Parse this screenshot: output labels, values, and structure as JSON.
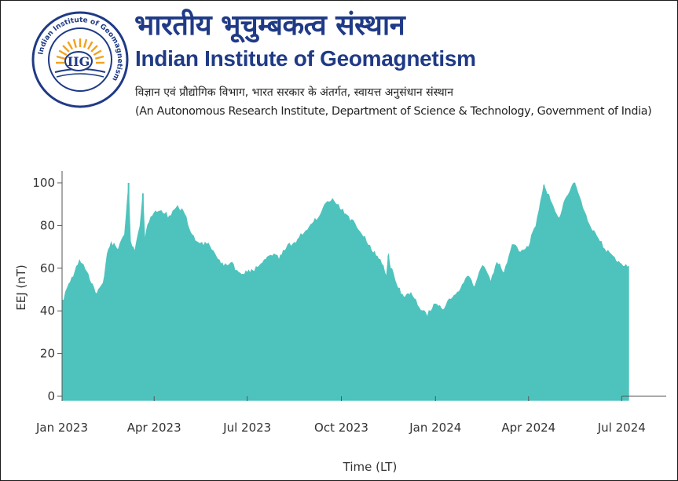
{
  "header": {
    "title_hindi": "भारतीय भूचुम्बकत्व संस्थान",
    "title_english": "Indian Institute of Geomagnetism",
    "subtitle_hindi": "विज्ञान एवं प्रौद्योगिक विभाग, भारत सरकार के अंतर्गत, स्वायत्त अनुसंधान संस्थान",
    "subtitle_english": "(An Autonomous Research Institute, Department of Science  & Technology, Government of India)",
    "logo": {
      "abbr": "IIG",
      "ring_text": "Indian Institute of Geomagnetism",
      "ring_text_hindi": "भारतीय भूचुम्बकत्व संस्थान",
      "ring_color": "#1f3a86",
      "sun_color": "#f2a11e"
    }
  },
  "chart_data": {
    "type": "area",
    "xlabel": "Time (LT)",
    "ylabel": "EEJ (nT)",
    "ylim": [
      -2,
      105
    ],
    "yticks": [
      0,
      20,
      40,
      60,
      80,
      100
    ],
    "x_tick_labels": [
      "Jan 2023",
      "Apr 2023",
      "Jul 2023",
      "Oct 2023",
      "Jan 2024",
      "Apr 2024",
      "Jul 2024"
    ],
    "x_tick_dates": [
      "2023-01-01",
      "2023-04-01",
      "2023-07-01",
      "2023-10-01",
      "2024-01-01",
      "2024-04-01",
      "2024-07-01"
    ],
    "xlim": [
      "2023-01-01",
      "2024-07-10"
    ],
    "fill_color": "#4ec3bd",
    "baseline_min": -2,
    "series": [
      {
        "date": [
          "2023-01-01",
          "2023-01-06",
          "2023-01-12",
          "2023-01-18",
          "2023-01-22",
          "2023-01-28",
          "2023-02-04",
          "2023-02-10",
          "2023-02-14",
          "2023-02-18",
          "2023-02-25",
          "2023-03-03",
          "2023-03-07",
          "2023-03-09",
          "2023-03-13",
          "2023-03-18",
          "2023-03-21",
          "2023-03-23",
          "2023-03-27",
          "2023-04-01",
          "2023-04-08",
          "2023-04-16",
          "2023-04-24",
          "2023-05-01",
          "2023-05-08",
          "2023-05-16",
          "2023-05-24",
          "2023-06-01",
          "2023-06-08",
          "2023-06-16",
          "2023-06-24",
          "2023-07-01",
          "2023-07-08",
          "2023-07-16",
          "2023-07-24",
          "2023-08-01",
          "2023-08-08",
          "2023-08-16",
          "2023-08-24",
          "2023-09-01",
          "2023-09-08",
          "2023-09-16",
          "2023-09-24",
          "2023-10-01",
          "2023-10-08",
          "2023-10-16",
          "2023-10-24",
          "2023-11-01",
          "2023-11-08",
          "2023-11-14",
          "2023-11-16",
          "2023-11-18",
          "2023-11-24",
          "2023-12-01",
          "2023-12-08",
          "2023-12-16",
          "2023-12-24",
          "2024-01-01",
          "2024-01-08",
          "2024-01-16",
          "2024-01-24",
          "2024-02-01",
          "2024-02-08",
          "2024-02-16",
          "2024-02-24",
          "2024-03-01",
          "2024-03-08",
          "2024-03-16",
          "2024-03-24",
          "2024-04-01",
          "2024-04-08",
          "2024-04-16",
          "2024-04-24",
          "2024-05-01",
          "2024-05-08",
          "2024-05-16",
          "2024-05-24",
          "2024-06-01",
          "2024-06-08",
          "2024-06-16",
          "2024-06-24",
          "2024-07-01",
          "2024-07-08"
        ],
        "value": [
          44,
          50,
          57,
          64,
          62,
          55,
          48,
          53,
          66,
          72,
          69,
          76,
          100,
          72,
          68,
          80,
          95,
          74,
          82,
          86,
          87,
          84,
          89,
          86,
          75,
          72,
          71,
          65,
          61,
          62,
          57,
          58,
          59,
          63,
          67,
          65,
          70,
          72,
          76,
          80,
          84,
          90,
          92,
          88,
          84,
          80,
          74,
          68,
          64,
          57,
          66,
          61,
          52,
          46,
          49,
          42,
          38,
          44,
          41,
          46,
          50,
          56,
          52,
          61,
          54,
          63,
          58,
          72,
          68,
          71,
          80,
          99,
          90,
          84,
          93,
          100,
          88,
          79,
          74,
          68,
          65,
          62,
          61
        ]
      }
    ]
  }
}
